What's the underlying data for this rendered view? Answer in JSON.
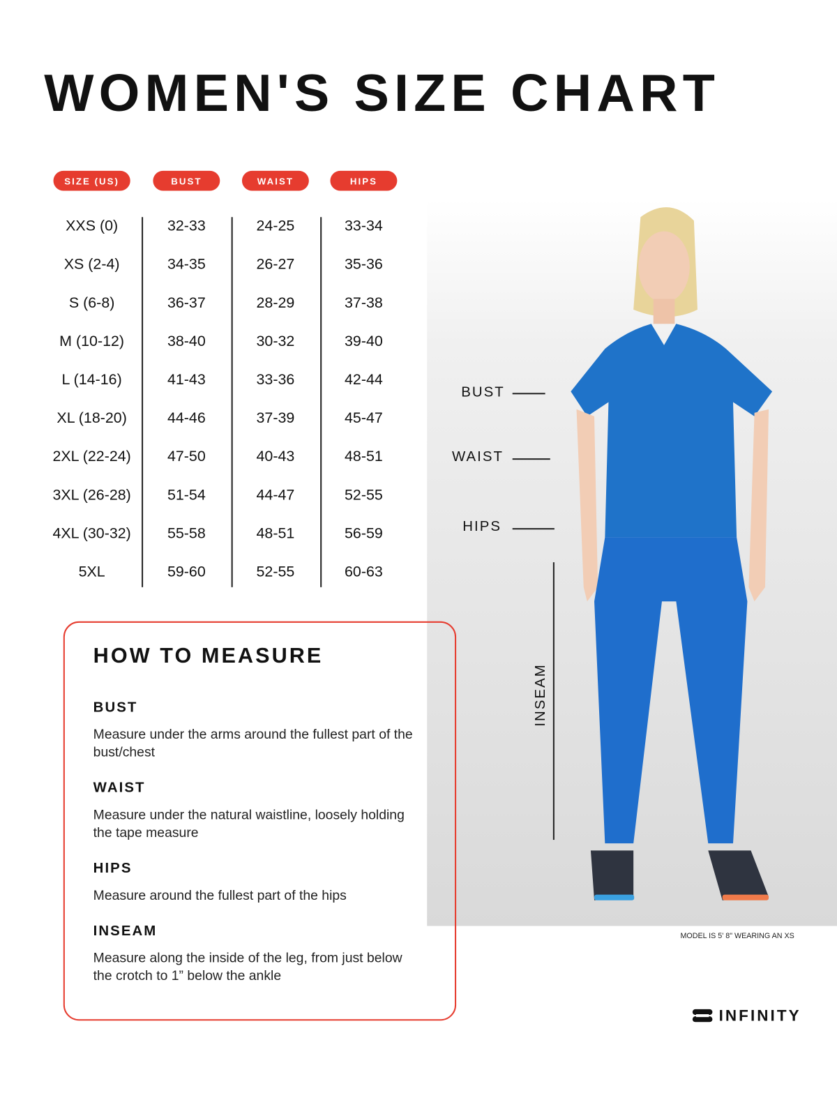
{
  "title": "WOMEN'S SIZE CHART",
  "table": {
    "headers": [
      "SIZE (US)",
      "BUST",
      "WAIST",
      "HIPS"
    ],
    "rows": [
      [
        "XXS (0)",
        "32-33",
        "24-25",
        "33-34"
      ],
      [
        "XS (2-4)",
        "34-35",
        "26-27",
        "35-36"
      ],
      [
        "S (6-8)",
        "36-37",
        "28-29",
        "37-38"
      ],
      [
        "M (10-12)",
        "38-40",
        "30-32",
        "39-40"
      ],
      [
        "L (14-16)",
        "41-43",
        "33-36",
        "42-44"
      ],
      [
        "XL (18-20)",
        "44-46",
        "37-39",
        "45-47"
      ],
      [
        "2XL (22-24)",
        "47-50",
        "40-43",
        "48-51"
      ],
      [
        "3XL (26-28)",
        "51-54",
        "44-47",
        "52-55"
      ],
      [
        "4XL (30-32)",
        "55-58",
        "48-51",
        "56-59"
      ],
      [
        "5XL",
        "59-60",
        "52-55",
        "60-63"
      ]
    ]
  },
  "figure_labels": {
    "bust": "BUST",
    "waist": "WAIST",
    "hips": "HIPS",
    "inseam": "INSEAM"
  },
  "caption": "MODEL IS 5' 8\" WEARING AN XS",
  "how_to_measure": {
    "title": "HOW TO MEASURE",
    "sections": [
      {
        "heading": "BUST",
        "text": "Measure under the arms around the fullest part of the bust/chest"
      },
      {
        "heading": "WAIST",
        "text": "Measure under the natural waistline, loosely holding the tape measure"
      },
      {
        "heading": "HIPS",
        "text": "Measure around the fullest part of the hips"
      },
      {
        "heading": "INSEAM",
        "text": "Measure along the inside of the leg, from just below the crotch to 1” below the ankle"
      }
    ]
  },
  "brand": "INFINITY",
  "colors": {
    "accent": "#e63c2f",
    "garment": "#1f73c9"
  }
}
